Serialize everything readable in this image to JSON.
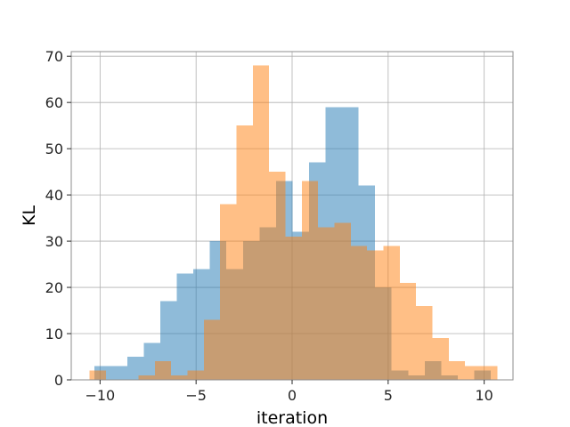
{
  "colors": {
    "series_0": "#1f77b4",
    "series_1": "#ff7f0e"
  },
  "chart_data": {
    "type": "histogram",
    "title": "",
    "xlabel": "iteration",
    "ylabel": "KL",
    "xlim": [
      -11.5,
      11.5
    ],
    "ylim": [
      0,
      71
    ],
    "xticks": [
      -10,
      -5,
      0,
      5,
      10
    ],
    "xtick_labels": [
      "−10",
      "−5",
      "0",
      "5",
      "10"
    ],
    "yticks": [
      0,
      10,
      20,
      30,
      40,
      50,
      60,
      70
    ],
    "ytick_labels": [
      "0",
      "10",
      "20",
      "30",
      "40",
      "50",
      "60",
      "70"
    ],
    "grid": true,
    "alpha": 0.5,
    "series": [
      {
        "color": "#1f77b4",
        "bins": [
          [
            -10.3,
            -9.44,
            3
          ],
          [
            -9.44,
            -8.58,
            3
          ],
          [
            -8.58,
            -7.72,
            5
          ],
          [
            -7.72,
            -6.86,
            8
          ],
          [
            -6.86,
            -6.0,
            17
          ],
          [
            -6.0,
            -5.14,
            23
          ],
          [
            -5.14,
            -4.28,
            24
          ],
          [
            -4.28,
            -3.42,
            30
          ],
          [
            -3.42,
            -2.56,
            24
          ],
          [
            -2.56,
            -1.7,
            30
          ],
          [
            -1.7,
            -0.84,
            33
          ],
          [
            -0.84,
            0.02,
            43
          ],
          [
            0.02,
            0.88,
            32
          ],
          [
            0.88,
            1.74,
            47
          ],
          [
            1.74,
            2.6,
            59
          ],
          [
            2.6,
            3.46,
            59
          ],
          [
            3.46,
            4.32,
            42
          ],
          [
            4.32,
            5.18,
            20
          ],
          [
            5.18,
            6.04,
            2
          ],
          [
            6.04,
            6.9,
            1
          ],
          [
            6.9,
            7.76,
            4
          ],
          [
            7.76,
            8.62,
            1
          ],
          [
            8.62,
            9.48,
            0
          ],
          [
            9.48,
            10.34,
            2
          ]
        ]
      },
      {
        "color": "#ff7f0e",
        "bins": [
          [
            -10.55,
            -9.7,
            2
          ],
          [
            -9.7,
            -8.85,
            0
          ],
          [
            -8.85,
            -8.0,
            0
          ],
          [
            -8.0,
            -7.15,
            1
          ],
          [
            -7.15,
            -6.3,
            4
          ],
          [
            -6.3,
            -5.45,
            1
          ],
          [
            -5.45,
            -4.6,
            2
          ],
          [
            -4.6,
            -3.75,
            13
          ],
          [
            -3.75,
            -2.9,
            38
          ],
          [
            -2.9,
            -2.05,
            55
          ],
          [
            -2.05,
            -1.2,
            68
          ],
          [
            -1.2,
            -0.35,
            45
          ],
          [
            -0.35,
            0.5,
            31
          ],
          [
            0.5,
            1.35,
            43
          ],
          [
            1.35,
            2.2,
            33
          ],
          [
            2.2,
            3.05,
            34
          ],
          [
            3.05,
            3.9,
            29
          ],
          [
            3.9,
            4.75,
            28
          ],
          [
            4.75,
            5.6,
            29
          ],
          [
            5.6,
            6.45,
            21
          ],
          [
            6.45,
            7.3,
            16
          ],
          [
            7.3,
            8.15,
            9
          ],
          [
            8.15,
            9.0,
            4
          ],
          [
            9.0,
            9.85,
            3
          ],
          [
            9.85,
            10.7,
            3
          ]
        ]
      }
    ]
  }
}
